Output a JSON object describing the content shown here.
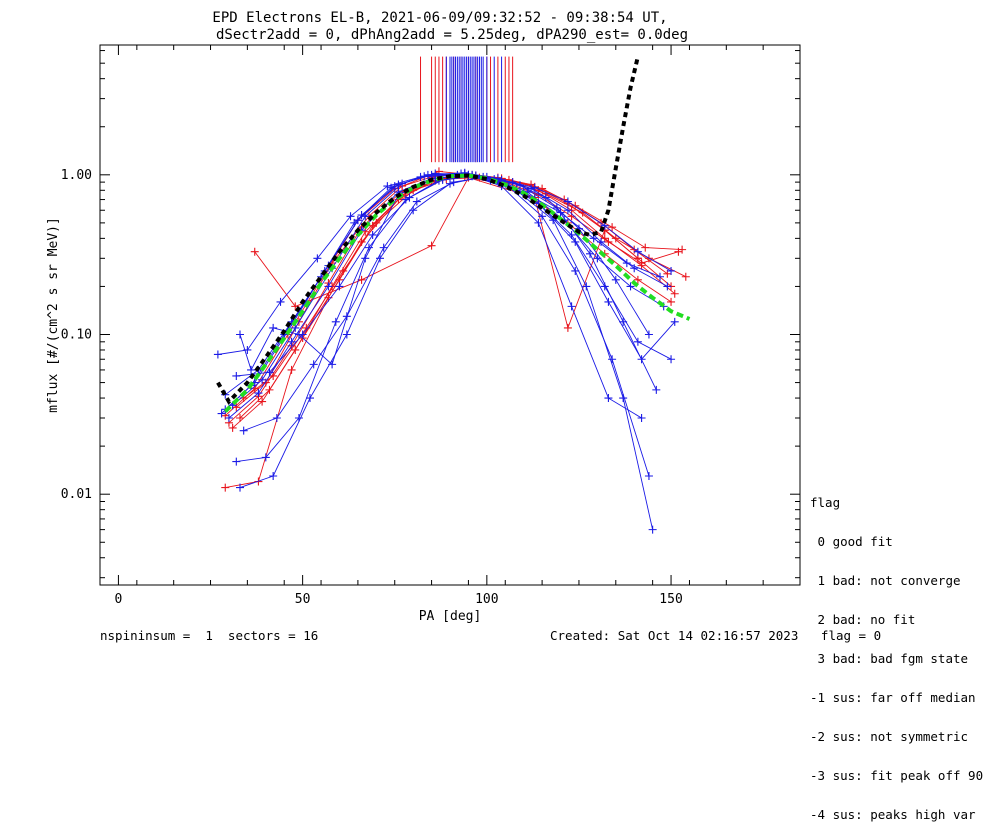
{
  "title_line1": "EPD Electrons EL-B, 2021-06-09/09:32:52 - 09:38:54 UT,",
  "title_line2": "dSectr2add = 0, dPhAng2add = 5.25deg, dPA290_est=   0.0deg",
  "footer": {
    "left": "nspininsum =  1  sectors = 16",
    "right": "Created: Sat Oct 14 02:16:57 2023   flag = 0"
  },
  "flag_legend": {
    "title": "flag",
    "lines": [
      " 0 good fit",
      " 1 bad: not converge",
      " 2 bad: no fit",
      " 3 bad: bad fgm state",
      "-1 sus: far off median",
      "-2 sus: not symmetric",
      "-3 sus: fit peak off 90",
      "-4 sus: peaks high var"
    ]
  },
  "colors": {
    "red": "#e8141c",
    "blue": "#1a1ae6",
    "green": "#22dd22",
    "black": "#000000"
  },
  "chart_data": {
    "type": "line",
    "xlabel": "PA [deg]",
    "ylabel": "mflux [#/(cm^2 s sr MeV)]",
    "xlim": [
      -5,
      185
    ],
    "ylim": [
      0.0027,
      6.5
    ],
    "yscale": "log",
    "xticks": [
      0,
      50,
      100,
      150
    ],
    "xtick_labels": [
      "0",
      "50",
      "100",
      "150"
    ],
    "yticks": [
      0.01,
      0.1,
      1.0
    ],
    "ytick_labels": [
      "0.01",
      "0.10",
      "1.00"
    ],
    "grid": false,
    "series": [
      {
        "color": "red",
        "x": [
          30,
          38,
          47,
          57,
          66,
          77,
          86,
          95,
          104,
          113,
          122,
          132,
          141,
          150
        ],
        "y": [
          0.028,
          0.041,
          0.085,
          0.21,
          0.47,
          0.79,
          0.95,
          1.0,
          0.95,
          0.84,
          0.66,
          0.45,
          0.3,
          0.2
        ]
      },
      {
        "color": "red",
        "x": [
          29,
          37,
          46,
          56,
          65,
          75,
          85,
          94,
          103,
          112,
          121,
          131,
          140,
          149
        ],
        "y": [
          0.031,
          0.046,
          0.1,
          0.24,
          0.52,
          0.82,
          0.97,
          1.02,
          0.96,
          0.87,
          0.7,
          0.5,
          0.34,
          0.24
        ]
      },
      {
        "color": "red",
        "x": [
          31,
          39,
          48,
          58,
          67,
          77,
          86,
          95,
          104,
          114,
          123,
          132,
          142,
          151
        ],
        "y": [
          0.026,
          0.038,
          0.08,
          0.2,
          0.44,
          0.74,
          0.92,
          0.98,
          0.92,
          0.8,
          0.6,
          0.4,
          0.27,
          0.18
        ]
      },
      {
        "color": "red",
        "x": [
          32,
          40,
          49,
          58,
          68,
          77,
          87,
          96,
          105,
          114,
          123,
          133,
          142,
          152
        ],
        "y": [
          0.035,
          0.05,
          0.12,
          0.28,
          0.55,
          0.85,
          1.05,
          1.0,
          0.9,
          0.75,
          0.55,
          0.38,
          0.28,
          0.33
        ]
      },
      {
        "color": "red",
        "x": [
          29,
          38,
          47,
          57,
          66,
          76,
          85,
          94,
          104,
          113,
          122,
          132,
          141,
          150
        ],
        "y": [
          0.011,
          0.012,
          0.06,
          0.17,
          0.38,
          0.7,
          0.9,
          0.97,
          0.88,
          0.7,
          0.5,
          0.32,
          0.22,
          0.16
        ]
      },
      {
        "color": "red",
        "x": [
          37,
          48,
          66,
          85,
          95,
          113,
          122,
          132,
          141
        ],
        "y": [
          0.33,
          0.15,
          0.22,
          0.36,
          0.96,
          0.72,
          0.11,
          0.45,
          0.3
        ]
      },
      {
        "color": "red",
        "x": [
          33,
          41,
          50,
          60,
          69,
          78,
          88,
          97,
          106,
          115,
          124,
          134,
          143,
          153
        ],
        "y": [
          0.03,
          0.045,
          0.095,
          0.22,
          0.48,
          0.78,
          0.95,
          0.99,
          0.93,
          0.82,
          0.64,
          0.47,
          0.35,
          0.34
        ]
      },
      {
        "color": "red",
        "x": [
          34,
          42,
          51,
          61,
          70,
          80,
          89,
          98,
          107,
          116,
          126,
          135,
          144,
          154
        ],
        "y": [
          0.04,
          0.055,
          0.11,
          0.25,
          0.5,
          0.8,
          0.94,
          0.96,
          0.9,
          0.76,
          0.58,
          0.4,
          0.3,
          0.23
        ]
      },
      {
        "color": "blue",
        "x": [
          28,
          36,
          45,
          55,
          64,
          74,
          83,
          93,
          102,
          111,
          121,
          130,
          139,
          148
        ],
        "y": [
          0.032,
          0.048,
          0.1,
          0.23,
          0.5,
          0.83,
          0.98,
          1.02,
          0.94,
          0.78,
          0.52,
          0.3,
          0.2,
          0.15
        ]
      },
      {
        "color": "blue",
        "x": [
          29,
          37,
          46,
          56,
          65,
          75,
          84,
          94,
          103,
          112,
          122,
          131,
          140,
          149
        ],
        "y": [
          0.034,
          0.05,
          0.105,
          0.25,
          0.52,
          0.85,
          1.0,
          1.03,
          0.95,
          0.82,
          0.6,
          0.38,
          0.26,
          0.2
        ]
      },
      {
        "color": "blue",
        "x": [
          30,
          38,
          47,
          57,
          66,
          76,
          85,
          95,
          104,
          113,
          123,
          132,
          141,
          150
        ],
        "y": [
          0.03,
          0.043,
          0.09,
          0.2,
          0.45,
          0.78,
          0.95,
          1.0,
          0.9,
          0.7,
          0.42,
          0.2,
          0.09,
          0.07
        ]
      },
      {
        "color": "blue",
        "x": [
          31,
          39,
          48,
          58,
          67,
          77,
          86,
          96,
          105,
          114,
          124,
          133,
          142,
          151
        ],
        "y": [
          0.036,
          0.052,
          0.11,
          0.26,
          0.55,
          0.88,
          1.02,
          1.0,
          0.88,
          0.66,
          0.38,
          0.16,
          0.07,
          0.12
        ]
      },
      {
        "color": "blue",
        "x": [
          32,
          40,
          49,
          59,
          68,
          78,
          87,
          96,
          106,
          115,
          124,
          134,
          144
        ],
        "y": [
          0.016,
          0.017,
          0.03,
          0.12,
          0.35,
          0.7,
          0.92,
          0.98,
          0.84,
          0.55,
          0.25,
          0.07,
          0.013
        ]
      },
      {
        "color": "blue",
        "x": [
          33,
          42,
          52,
          62,
          71,
          80,
          90,
          99,
          108,
          118,
          127,
          137,
          145
        ],
        "y": [
          0.011,
          0.013,
          0.04,
          0.1,
          0.3,
          0.6,
          0.88,
          0.97,
          0.8,
          0.52,
          0.2,
          0.04,
          0.006
        ]
      },
      {
        "color": "blue",
        "x": [
          27,
          35,
          44,
          54,
          63,
          73,
          82,
          92,
          101,
          110,
          120,
          129,
          138,
          147
        ],
        "y": [
          0.075,
          0.08,
          0.16,
          0.3,
          0.55,
          0.85,
          0.97,
          1.0,
          0.92,
          0.78,
          0.58,
          0.4,
          0.28,
          0.23
        ]
      },
      {
        "color": "blue",
        "x": [
          34,
          43,
          53,
          62,
          72,
          81,
          91,
          100,
          109,
          119,
          128,
          137,
          146
        ],
        "y": [
          0.025,
          0.03,
          0.065,
          0.13,
          0.35,
          0.68,
          0.9,
          0.97,
          0.86,
          0.62,
          0.32,
          0.12,
          0.045
        ]
      },
      {
        "color": "blue",
        "x": [
          29,
          38,
          47,
          57,
          66,
          76,
          85,
          94,
          104,
          113,
          122,
          132,
          141,
          150
        ],
        "y": [
          0.042,
          0.06,
          0.12,
          0.27,
          0.56,
          0.87,
          1.0,
          1.01,
          0.93,
          0.83,
          0.68,
          0.48,
          0.33,
          0.25
        ]
      },
      {
        "color": "blue",
        "x": [
          32,
          41,
          50,
          60,
          69,
          79,
          88,
          97,
          107,
          116,
          125,
          135,
          144
        ],
        "y": [
          0.055,
          0.058,
          0.1,
          0.2,
          0.42,
          0.72,
          0.93,
          0.99,
          0.9,
          0.72,
          0.46,
          0.22,
          0.1
        ]
      },
      {
        "color": "blue",
        "x": [
          33,
          36,
          42,
          49,
          58,
          67,
          76,
          86,
          95,
          104,
          114,
          123,
          133,
          142
        ],
        "y": [
          0.1,
          0.06,
          0.11,
          0.1,
          0.065,
          0.3,
          0.75,
          0.95,
          1.0,
          0.85,
          0.5,
          0.15,
          0.04,
          0.03
        ]
      }
    ],
    "fit_green": {
      "color": "green",
      "x": [
        29,
        35,
        40,
        45,
        50,
        55,
        60,
        65,
        70,
        75,
        80,
        85,
        90,
        95,
        100,
        105,
        110,
        115,
        120,
        125,
        130,
        135,
        140,
        145,
        150,
        155
      ],
      "y": [
        0.033,
        0.045,
        0.065,
        0.095,
        0.14,
        0.21,
        0.3,
        0.42,
        0.56,
        0.7,
        0.83,
        0.92,
        0.98,
        0.99,
        0.95,
        0.87,
        0.77,
        0.65,
        0.53,
        0.43,
        0.34,
        0.27,
        0.21,
        0.17,
        0.14,
        0.125
      ]
    },
    "fit_black": {
      "color": "black",
      "x": [
        27,
        30,
        35,
        40,
        45,
        50,
        55,
        60,
        65,
        70,
        75,
        80,
        85,
        90,
        95,
        100,
        105,
        110,
        115,
        120,
        125,
        128,
        131,
        133,
        135,
        137,
        139,
        141
      ],
      "y": [
        0.05,
        0.038,
        0.05,
        0.072,
        0.105,
        0.16,
        0.23,
        0.33,
        0.45,
        0.58,
        0.72,
        0.84,
        0.93,
        0.98,
        0.99,
        0.94,
        0.85,
        0.74,
        0.62,
        0.52,
        0.44,
        0.42,
        0.44,
        0.6,
        1.1,
        2.0,
        3.5,
        5.5
      ]
    },
    "vertical_lines": {
      "y_range": [
        1.2,
        5.5
      ],
      "red_x": [
        82,
        85,
        86,
        87,
        88,
        89,
        91,
        93,
        95,
        97,
        100,
        101,
        103,
        105,
        106,
        107
      ],
      "blue_x": [
        89,
        90,
        90.5,
        91,
        91.5,
        92,
        92.5,
        93,
        93.5,
        94,
        94.5,
        95,
        95.5,
        96,
        96.5,
        97,
        97.5,
        98,
        98.5,
        99,
        100,
        102,
        104
      ]
    }
  }
}
